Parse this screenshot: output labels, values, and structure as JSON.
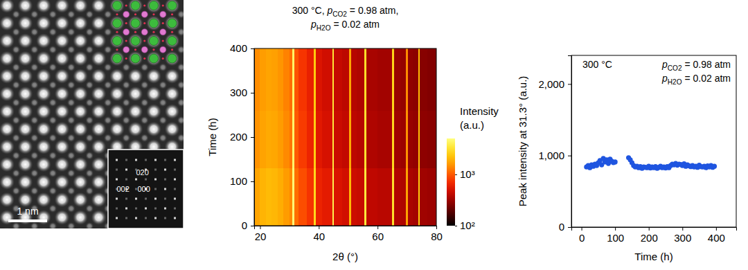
{
  "chart_data": [
    {
      "type": "image",
      "scale_bar": "1 nm",
      "fft_labels": [
        "020",
        "002",
        "000"
      ]
    },
    {
      "type": "heatmap",
      "title": [
        [
          {
            "text": "300 °C, "
          },
          {
            "text": "p",
            "subscript": "CO2"
          },
          {
            "text": " = 0.98 atm,"
          }
        ],
        [
          {
            "text": "p",
            "subscript": "H2O"
          },
          {
            "text": " = 0.02 atm"
          }
        ]
      ],
      "x_label": "2θ (°)",
      "y_label": "Time (h)",
      "xlim": [
        18,
        80
      ],
      "xticks": [
        20,
        40,
        60,
        80
      ],
      "ylim": [
        0,
        400
      ],
      "yticks": [
        0,
        100,
        200,
        300,
        400
      ],
      "x_edges": [
        18,
        20,
        22,
        24,
        26,
        28,
        30,
        31.0,
        31.6,
        33,
        36,
        38.3,
        38.9,
        41,
        44.6,
        45.2,
        48,
        50.3,
        50.9,
        53,
        55.5,
        56.1,
        60,
        65.0,
        65.6,
        68,
        69.7,
        70.3,
        72,
        73.8,
        74.4,
        77,
        80
      ],
      "y_edges": [
        0,
        130,
        260,
        400
      ],
      "values": [
        [
          1720,
          1950,
          2070,
          2010,
          1840,
          1610,
          1380,
          4800,
          1150,
          920,
          750,
          2800,
          640,
          580,
          3900,
          520,
          480,
          2050,
          460,
          440,
          3500,
          410,
          390,
          3100,
          370,
          360,
          1700,
          345,
          330,
          2450,
          320,
          310
        ],
        [
          1500,
          1700,
          1800,
          1750,
          1600,
          1400,
          1200,
          4500,
          1000,
          800,
          650,
          2500,
          560,
          500,
          3500,
          450,
          420,
          1800,
          400,
          380,
          3200,
          360,
          340,
          2800,
          320,
          310,
          1500,
          300,
          290,
          2200,
          280,
          270
        ],
        [
          1430,
          1620,
          1710,
          1660,
          1520,
          1330,
          1140,
          4400,
          950,
          760,
          620,
          2400,
          530,
          475,
          3350,
          430,
          400,
          1720,
          380,
          360,
          3050,
          340,
          325,
          2680,
          305,
          295,
          1430,
          285,
          275,
          2100,
          265,
          255
        ]
      ],
      "colorbar": {
        "label": [
          "Intensity",
          "(a.u.)"
        ],
        "range": [
          100,
          5000
        ],
        "log": true,
        "ticks": [
          {
            "value": 1000,
            "label": "10³"
          },
          {
            "value": 100,
            "label": "10²"
          }
        ]
      }
    },
    {
      "type": "scatter",
      "annotations": [
        [
          {
            "text": "300 °C"
          }
        ],
        [
          {
            "text": "p",
            "subscript": "CO2"
          },
          {
            "text": " = 0.98 atm"
          }
        ],
        [
          {
            "text": "p",
            "subscript": "H2O"
          },
          {
            "text": " = 0.02 atm"
          }
        ]
      ],
      "x_label": "Time (h)",
      "y_label": "Peak intensity at 31.3° (a.u.)",
      "xlim": [
        -30,
        460
      ],
      "xticks": [
        0,
        100,
        200,
        300,
        400
      ],
      "ylim": [
        0,
        2400
      ],
      "yticks": [
        0,
        {
          "value": 1000,
          "label": "1,000"
        },
        {
          "value": 2000,
          "label": "2,000"
        }
      ],
      "color": "#1f55e0",
      "marker": "circle",
      "x": [
        15,
        20,
        25,
        30,
        35,
        40,
        45,
        50,
        55,
        60,
        65,
        70,
        75,
        80,
        85,
        90,
        95,
        100,
        140,
        145,
        150,
        155,
        160,
        165,
        170,
        175,
        180,
        185,
        190,
        195,
        200,
        205,
        210,
        215,
        220,
        225,
        230,
        235,
        240,
        245,
        250,
        255,
        260,
        265,
        270,
        275,
        280,
        285,
        290,
        295,
        300,
        305,
        310,
        315,
        320,
        325,
        330,
        335,
        340,
        345,
        350,
        355,
        360,
        365,
        370,
        375,
        380,
        385,
        390,
        395
      ],
      "values": [
        840,
        860,
        830,
        870,
        850,
        880,
        860,
        900,
        930,
        870,
        960,
        910,
        940,
        890,
        950,
        920,
        900,
        910,
        970,
        940,
        900,
        860,
        840,
        850,
        830,
        845,
        820,
        840,
        835,
        830,
        850,
        825,
        840,
        830,
        845,
        820,
        835,
        850,
        830,
        840,
        825,
        845,
        830,
        860,
        880,
        870,
        890,
        865,
        880,
        875,
        860,
        885,
        850,
        870,
        855,
        845,
        860,
        840,
        850,
        835,
        865,
        845,
        840,
        850,
        830,
        855,
        840,
        860,
        835,
        850
      ]
    }
  ]
}
